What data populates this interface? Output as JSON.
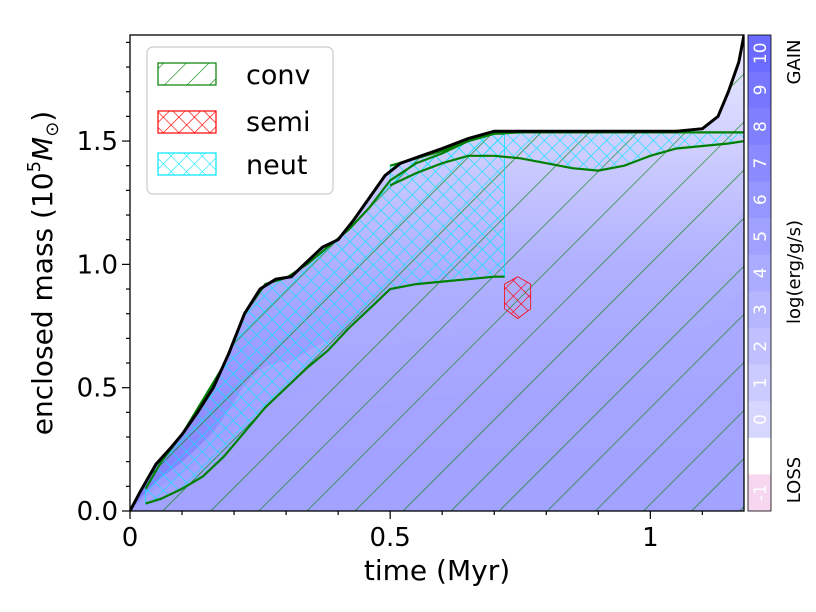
{
  "chart_data": {
    "type": "area",
    "xlabel": "time (Myr)",
    "ylabel_prefix": "enclosed mass (10",
    "ylabel_exp": "5",
    "ylabel_unit": "M",
    "ylabel_sub": "⊙",
    "ylabel_suffix": ")",
    "xlim": [
      0,
      1.18
    ],
    "ylim": [
      0,
      1.93
    ],
    "xticks": [
      {
        "value": 0,
        "label": "0"
      },
      {
        "value": 0.5,
        "label": "0.5"
      },
      {
        "value": 1,
        "label": "1"
      }
    ],
    "yticks": [
      {
        "value": 0,
        "label": "0.0"
      },
      {
        "value": 0.5,
        "label": "0.5"
      },
      {
        "value": 1,
        "label": "1.0"
      },
      {
        "value": 1.5,
        "label": "1.5"
      }
    ],
    "legend": {
      "placement": "top-left",
      "entries": [
        {
          "label": "conv",
          "color": "#008000",
          "hatch": "diagonal"
        },
        {
          "label": "semi",
          "color": "#ff0000",
          "hatch": "cross"
        },
        {
          "label": "neut",
          "color": "#00e5ff",
          "hatch": "cross"
        }
      ]
    },
    "surface_mass": {
      "x": [
        0,
        0.02,
        0.05,
        0.08,
        0.1,
        0.13,
        0.16,
        0.19,
        0.22,
        0.25,
        0.28,
        0.31,
        0.34,
        0.37,
        0.4,
        0.43,
        0.46,
        0.49,
        0.52,
        0.56,
        0.6,
        0.65,
        0.7,
        0.75,
        0.8,
        0.9,
        1.0,
        1.05,
        1.1,
        1.13,
        1.15,
        1.17,
        1.18
      ],
      "y": [
        0,
        0.08,
        0.19,
        0.26,
        0.31,
        0.4,
        0.5,
        0.64,
        0.8,
        0.9,
        0.94,
        0.95,
        1.01,
        1.07,
        1.1,
        1.18,
        1.27,
        1.36,
        1.41,
        1.44,
        1.47,
        1.51,
        1.54,
        1.54,
        1.54,
        1.54,
        1.54,
        1.54,
        1.55,
        1.6,
        1.7,
        1.82,
        1.93
      ]
    },
    "neut_outer_zone": {
      "x": [
        0.5,
        0.55,
        0.6,
        0.65,
        0.7,
        0.75,
        0.8,
        0.85,
        0.9,
        0.95,
        1.0,
        1.05,
        1.1,
        1.15,
        1.18
      ],
      "upper": [
        1.4,
        1.43,
        1.46,
        1.5,
        1.53,
        1.535,
        1.535,
        1.535,
        1.535,
        1.535,
        1.535,
        1.535,
        1.535,
        1.535,
        1.535
      ],
      "lower": [
        1.32,
        1.37,
        1.41,
        1.44,
        1.44,
        1.43,
        1.41,
        1.39,
        1.38,
        1.4,
        1.44,
        1.47,
        1.48,
        1.49,
        1.5
      ]
    },
    "neut_inner_zone": {
      "x": [
        0.03,
        0.06,
        0.1,
        0.14,
        0.18,
        0.22,
        0.26,
        0.3,
        0.34,
        0.38,
        0.42,
        0.46,
        0.5,
        0.55,
        0.6,
        0.65,
        0.7,
        0.72
      ],
      "upper": [
        0.09,
        0.2,
        0.31,
        0.45,
        0.59,
        0.8,
        0.92,
        0.945,
        1.0,
        1.07,
        1.14,
        1.23,
        1.34,
        1.41,
        1.45,
        1.5,
        1.53,
        1.53
      ],
      "lower": [
        0.03,
        0.05,
        0.09,
        0.14,
        0.22,
        0.32,
        0.42,
        0.5,
        0.58,
        0.65,
        0.74,
        0.82,
        0.9,
        0.92,
        0.93,
        0.94,
        0.95,
        0.95
      ]
    },
    "semi_zone": {
      "x": [
        0.72,
        0.745,
        0.77
      ],
      "upper": [
        0.92,
        0.95,
        0.92
      ],
      "lower": [
        0.82,
        0.78,
        0.82
      ]
    },
    "colorbar": {
      "top_label": "GAIN",
      "middle_label": "log(erg/g/s)",
      "bottom_label": "LOSS",
      "ticks": [
        "10",
        "9",
        "8",
        "7",
        "6",
        "5",
        "4",
        "3",
        "2",
        "1",
        "0",
        "⋮",
        "-1"
      ],
      "gain_color": "#6b6bff",
      "loss_color": "#f7d7f0"
    },
    "colors": {
      "conv": "#008000",
      "semi": "#ff0000",
      "neut": "#00e5ff",
      "surface": "#000000",
      "burning": "#7b7bff"
    }
  }
}
